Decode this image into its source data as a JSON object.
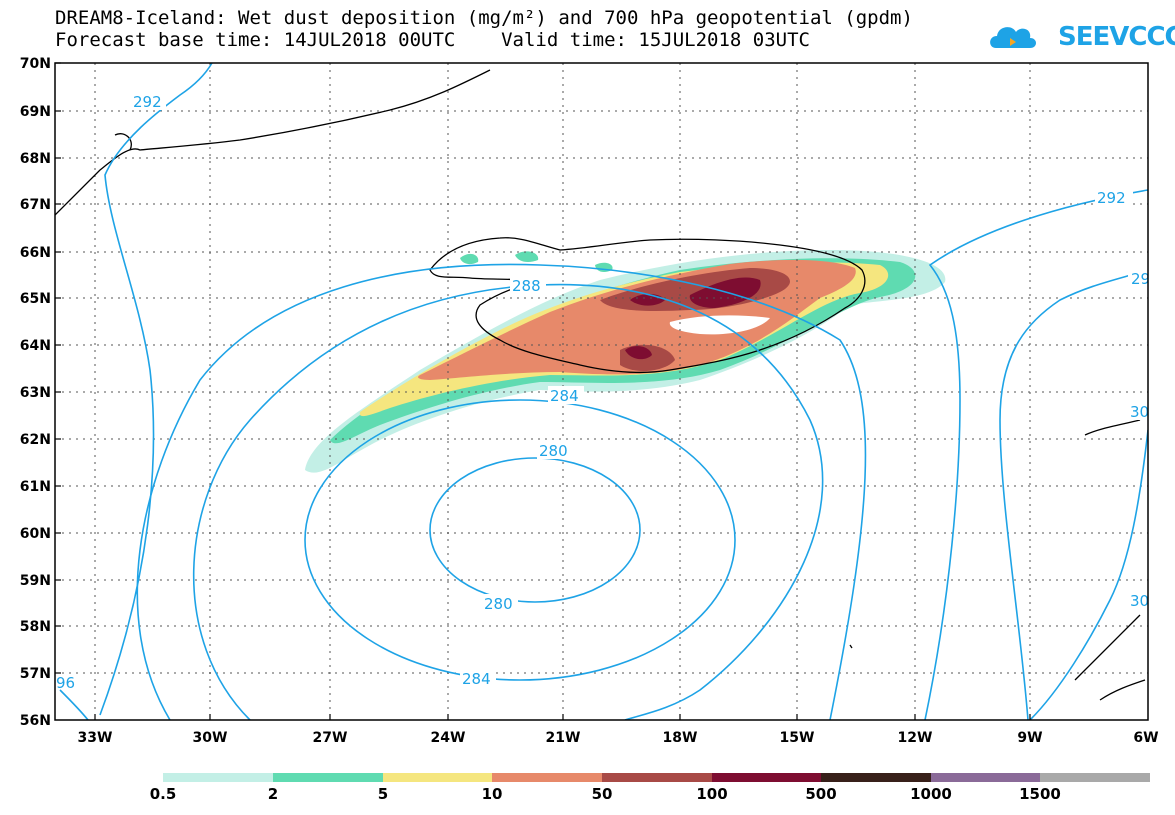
{
  "title": {
    "line1": "DREAM8-Iceland: Wet dust deposition (mg/m²) and 700 hPa geopotential (gpdm)",
    "line2": "Forecast base time: 14JUL2018 00UTC    Valid time: 15JUL2018 03UTC"
  },
  "logo": {
    "text": "SEEVCCC",
    "icon": "cloud-icon",
    "color": "#1ea3e6"
  },
  "map": {
    "lat_labels": [
      "70N",
      "69N",
      "68N",
      "67N",
      "66N",
      "65N",
      "64N",
      "63N",
      "62N",
      "61N",
      "60N",
      "59N",
      "58N",
      "57N",
      "56N"
    ],
    "lon_labels": [
      "33W",
      "30W",
      "27W",
      "24W",
      "21W",
      "18W",
      "15W",
      "12W",
      "9W",
      "6W"
    ],
    "contour_labels": [
      "292",
      "292",
      "29",
      "288",
      "284",
      "280",
      "280",
      "284",
      "30",
      "30",
      "96"
    ],
    "contour_color": "#1ea3e6"
  },
  "legend": {
    "labels": [
      "0.5",
      "2",
      "5",
      "10",
      "50",
      "100",
      "500",
      "1000",
      "1500"
    ],
    "colors": [
      "#c3efe6",
      "#5fdbb1",
      "#f5e67f",
      "#e7896a",
      "#a84a46",
      "#7e0d31",
      "#38201a",
      "#8a6a98",
      "#a9a9a9"
    ]
  }
}
